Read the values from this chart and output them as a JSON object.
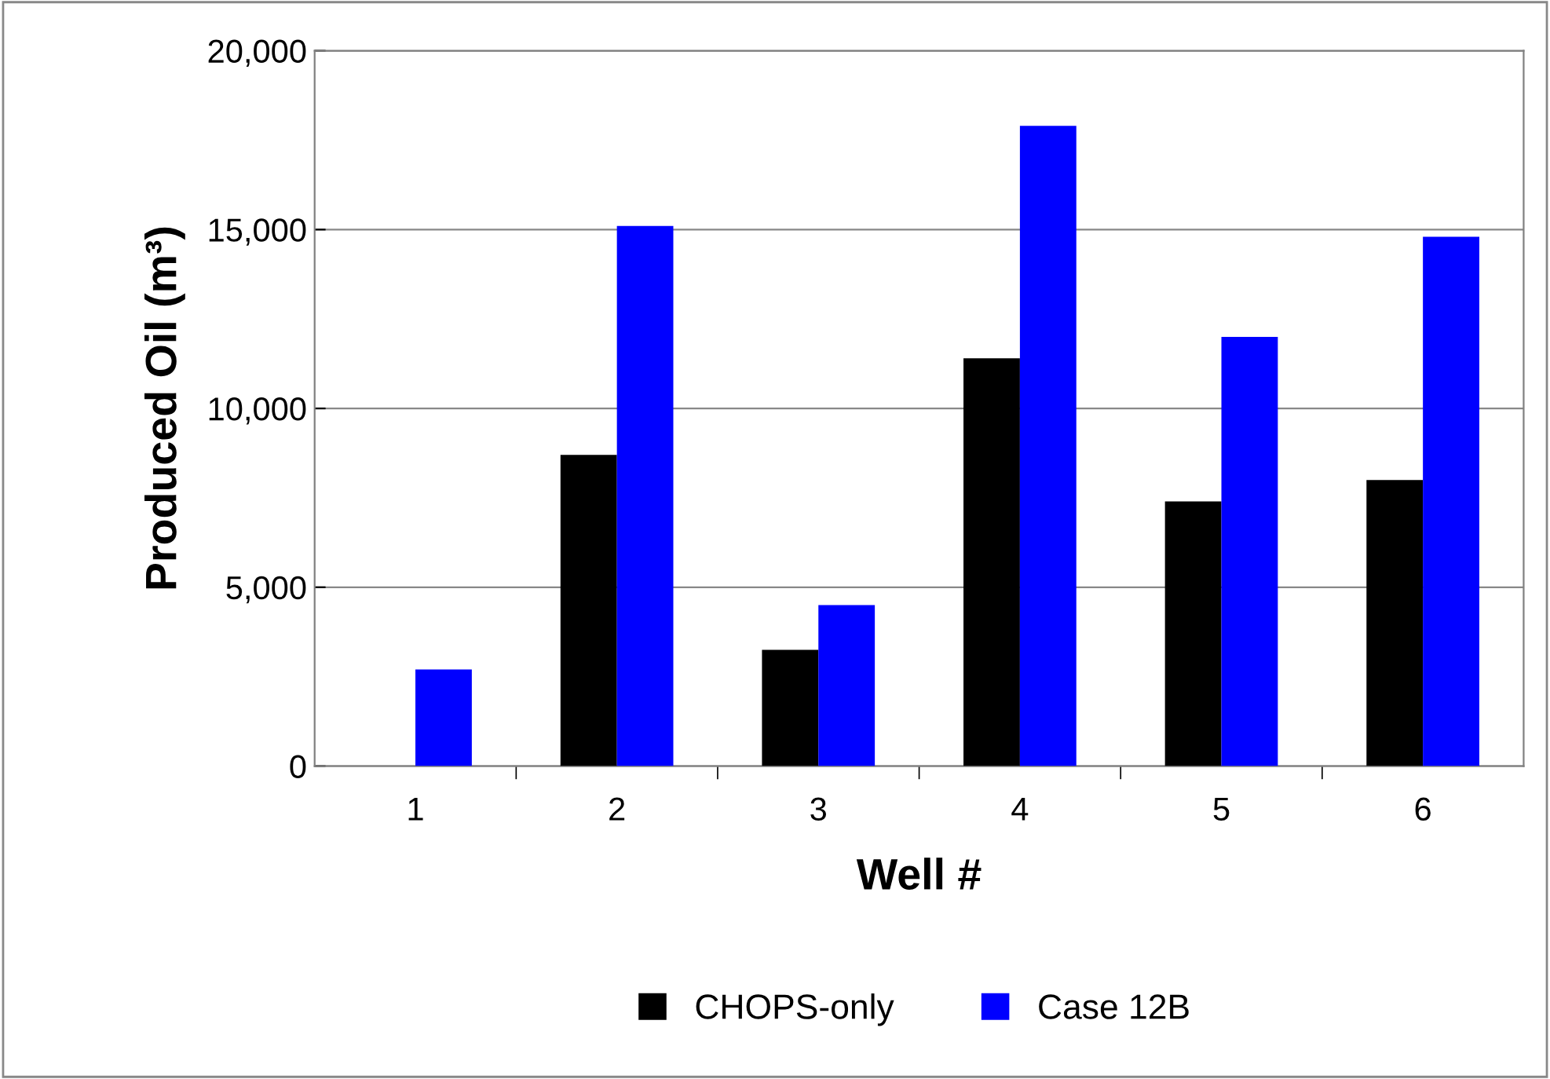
{
  "chart_data": {
    "type": "bar",
    "xlabel": "Well #",
    "ylabel": "Produced Oil (m³)",
    "categories": [
      "1",
      "2",
      "3",
      "4",
      "5",
      "6"
    ],
    "series": [
      {
        "name": "CHOPS-only",
        "color": "#000000",
        "values": [
          0,
          8700,
          3250,
          11400,
          7400,
          8000
        ]
      },
      {
        "name": "Case 12B",
        "color": "#0000ff",
        "values": [
          2700,
          15100,
          4500,
          17900,
          12000,
          14800
        ]
      }
    ],
    "ylim": [
      0,
      20000
    ],
    "yticks": [
      {
        "value": 0,
        "label": "0"
      },
      {
        "value": 5000,
        "label": "5,000"
      },
      {
        "value": 10000,
        "label": "10,000"
      },
      {
        "value": 15000,
        "label": "15,000"
      },
      {
        "value": 20000,
        "label": "20,000"
      }
    ],
    "grid": "y",
    "legend": "bottom"
  }
}
